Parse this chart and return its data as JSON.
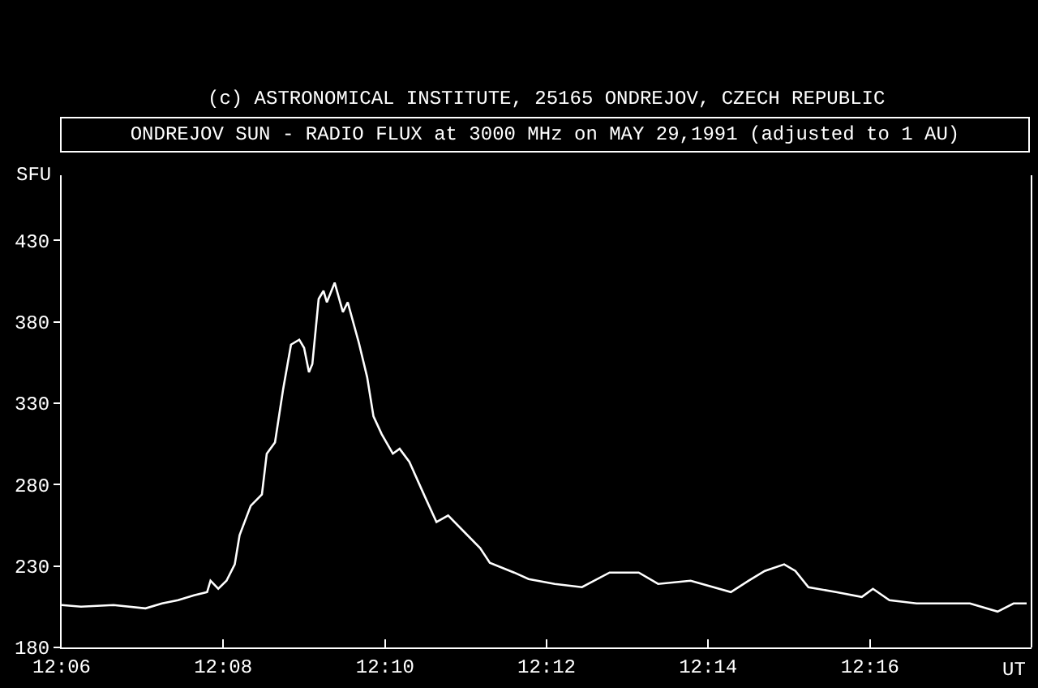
{
  "chart_data": {
    "type": "line",
    "title": "ONDREJOV SUN - RADIO FLUX at 3000 MHz on MAY 29,1991 (adjusted to 1 AU)",
    "ylabel": "SFU",
    "annotations": [
      "(c) ASTRONOMICAL INSTITUTE, 25165 ONDREJOV, CZECH REPUBLIC"
    ],
    "x": [
      12.1,
      12.104,
      12.1107,
      12.1173,
      12.1207,
      12.124,
      12.1273,
      12.13,
      12.1307,
      12.1323,
      12.134,
      12.1357,
      12.1367,
      12.139,
      12.1413,
      12.1423,
      12.144,
      12.1457,
      12.1473,
      12.149,
      12.15,
      12.151,
      12.1517,
      12.153,
      12.154,
      12.1547,
      12.1563,
      12.158,
      12.159,
      12.1613,
      12.163,
      12.1643,
      12.166,
      12.1683,
      12.1697,
      12.1717,
      12.175,
      12.1773,
      12.1797,
      12.183,
      12.1863,
      12.1883,
      12.1933,
      12.1963,
      12.2017,
      12.2073,
      12.213,
      12.219,
      12.223,
      12.2297,
      12.238,
      12.2417,
      12.245,
      12.249,
      12.2513,
      12.254,
      12.2597,
      12.265,
      12.2673,
      12.2707,
      12.2763,
      12.2817,
      12.2873,
      12.293,
      12.2963,
      12.299
    ],
    "series": [
      {
        "color": "#ffffff",
        "values": [
          206,
          205,
          206,
          204,
          207,
          209,
          212,
          214,
          221,
          216,
          221,
          231,
          249,
          267,
          274,
          299,
          306,
          339,
          366,
          369,
          364,
          349,
          354,
          394,
          399,
          392,
          404,
          386,
          392,
          367,
          346,
          322,
          311,
          299,
          302,
          294,
          272,
          257,
          261,
          251,
          241,
          232,
          226,
          222,
          219,
          217,
          226,
          226,
          219,
          221,
          214,
          221,
          227,
          231,
          227,
          217,
          214,
          211,
          216,
          209,
          207,
          207,
          207,
          202,
          207,
          207
        ]
      }
    ],
    "xlim": [
      12.1,
      12.3
    ],
    "xticks": [
      {
        "value": 12.1,
        "label": "12:06"
      },
      {
        "value": 12.1333,
        "label": "12:08"
      },
      {
        "value": 12.1667,
        "label": "12:10"
      },
      {
        "value": 12.2,
        "label": "12:12"
      },
      {
        "value": 12.2333,
        "label": "12:14"
      },
      {
        "value": 12.2667,
        "label": "12:16"
      }
    ],
    "xlabel": "UT",
    "ylim": [
      180,
      470
    ],
    "yticks": [
      180,
      230,
      280,
      330,
      380,
      430
    ],
    "grid": false,
    "marker": "none",
    "line_style": "solid"
  }
}
